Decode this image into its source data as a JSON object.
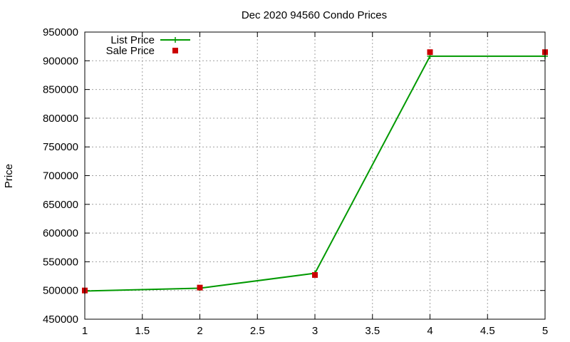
{
  "chart_data": {
    "type": "line",
    "title": "Dec 2020 94560 Condo Prices",
    "xlabel": "",
    "ylabel": "Price",
    "xlim": [
      1,
      5
    ],
    "ylim": [
      450000,
      950000
    ],
    "xticks": [
      1,
      1.5,
      2,
      2.5,
      3,
      3.5,
      4,
      4.5,
      5
    ],
    "xtick_labels": [
      "1",
      "1.5",
      "2",
      "2.5",
      "3",
      "3.5",
      "4",
      "4.5",
      "5"
    ],
    "yticks": [
      450000,
      500000,
      550000,
      600000,
      650000,
      700000,
      750000,
      800000,
      850000,
      900000,
      950000
    ],
    "ytick_labels": [
      "450000",
      "500000",
      "550000",
      "600000",
      "650000",
      "700000",
      "750000",
      "800000",
      "850000",
      "900000",
      "950000"
    ],
    "grid": true,
    "legend_position": "top-left",
    "series": [
      {
        "name": "List Price",
        "style": "line",
        "color": "#009900",
        "x": [
          1,
          2,
          3,
          4,
          5
        ],
        "y": [
          499000,
          504000,
          530000,
          908000,
          908000
        ]
      },
      {
        "name": "Sale Price",
        "style": "points",
        "color": "#cc0000",
        "x": [
          1,
          2,
          3,
          4,
          5
        ],
        "y": [
          500000,
          505000,
          527000,
          915000,
          915000
        ]
      }
    ]
  }
}
